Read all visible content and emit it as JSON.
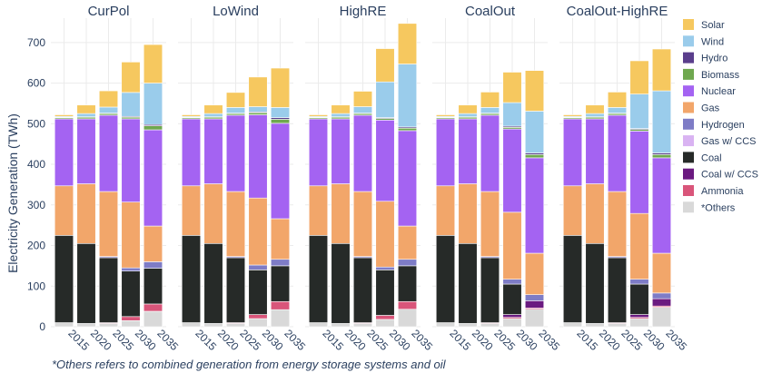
{
  "chart_data": {
    "type": "bar",
    "stacked": true,
    "ylabel": "Electricity Generation (TWh)",
    "ylim": [
      0,
      760
    ],
    "yticks": [
      0,
      100,
      200,
      300,
      400,
      500,
      600,
      700
    ],
    "grid": true,
    "legend_position": "right",
    "footnote": "*Others refers to combined generation from energy storage systems and oil",
    "categories": [
      "2015",
      "2020",
      "2025",
      "2030",
      "2035"
    ],
    "stack_order": [
      "*Others",
      "Ammonia",
      "Coal w/ CCS",
      "Coal",
      "Gas w/ CCS",
      "Hydrogen",
      "Gas",
      "Nuclear",
      "Biomass",
      "Hydro",
      "Wind",
      "Solar"
    ],
    "legend": [
      {
        "name": "Solar",
        "color": "#F6C85F"
      },
      {
        "name": "Wind",
        "color": "#9ACCEB"
      },
      {
        "name": "Hydro",
        "color": "#5A3E8C"
      },
      {
        "name": "Biomass",
        "color": "#6FA84F"
      },
      {
        "name": "Nuclear",
        "color": "#A463F2"
      },
      {
        "name": "Gas",
        "color": "#F2A66A"
      },
      {
        "name": "Hydrogen",
        "color": "#7E7CC6"
      },
      {
        "name": "Gas w/ CCS",
        "color": "#D9B3F2"
      },
      {
        "name": "Coal",
        "color": "#262A28"
      },
      {
        "name": "Coal w/ CCS",
        "color": "#6B1A80"
      },
      {
        "name": "Ammonia",
        "color": "#D9557A"
      },
      {
        "name": "*Others",
        "color": "#D9D9D9"
      }
    ],
    "panels": [
      {
        "title": "CurPol",
        "stacks": [
          {
            "*Others": 10,
            "Coal": 215,
            "Gas": 122,
            "Nuclear": 165,
            "Biomass": 3,
            "Hydro": 1,
            "Wind": 2,
            "Solar": 4
          },
          {
            "*Others": 8,
            "Coal": 197,
            "Gas": 147,
            "Nuclear": 160,
            "Biomass": 4,
            "Hydro": 1,
            "Wind": 8,
            "Solar": 21
          },
          {
            "*Others": 8,
            "Ammonia": 2,
            "Coal": 160,
            "Hydrogen": 3,
            "Gas": 160,
            "Nuclear": 188,
            "Biomass": 4,
            "Hydro": 1,
            "Wind": 15,
            "Solar": 40
          },
          {
            "*Others": 15,
            "Ammonia": 10,
            "Coal": 112,
            "Hydrogen": 8,
            "Gas": 162,
            "Nuclear": 205,
            "Biomass": 4,
            "Hydro": 2,
            "Wind": 59,
            "Solar": 75
          },
          {
            "*Others": 38,
            "Ammonia": 18,
            "Coal": 88,
            "Hydrogen": 16,
            "Gas": 88,
            "Nuclear": 237,
            "Biomass": 10,
            "Hydro": 3,
            "Wind": 102,
            "Solar": 95
          }
        ]
      },
      {
        "title": "LoWind",
        "stacks": [
          {
            "*Others": 10,
            "Coal": 215,
            "Gas": 122,
            "Nuclear": 165,
            "Biomass": 3,
            "Hydro": 1,
            "Wind": 2,
            "Solar": 4
          },
          {
            "*Others": 8,
            "Coal": 197,
            "Gas": 147,
            "Nuclear": 160,
            "Biomass": 4,
            "Hydro": 1,
            "Wind": 8,
            "Solar": 21
          },
          {
            "*Others": 8,
            "Ammonia": 2,
            "Coal": 160,
            "Hydrogen": 3,
            "Gas": 160,
            "Nuclear": 188,
            "Biomass": 4,
            "Hydro": 1,
            "Wind": 14,
            "Solar": 37
          },
          {
            "*Others": 20,
            "Ammonia": 10,
            "Coal": 110,
            "Hydrogen": 12,
            "Gas": 165,
            "Nuclear": 205,
            "Biomass": 5,
            "Hydro": 2,
            "Wind": 13,
            "Solar": 73
          },
          {
            "*Others": 42,
            "Ammonia": 20,
            "Coal": 88,
            "Hydrogen": 16,
            "Gas": 100,
            "Nuclear": 235,
            "Biomass": 10,
            "Hydro": 4,
            "Wind": 25,
            "Solar": 97
          }
        ]
      },
      {
        "title": "HighRE",
        "stacks": [
          {
            "*Others": 10,
            "Coal": 215,
            "Gas": 122,
            "Nuclear": 165,
            "Biomass": 3,
            "Hydro": 1,
            "Wind": 2,
            "Solar": 4
          },
          {
            "*Others": 8,
            "Coal": 197,
            "Gas": 147,
            "Nuclear": 160,
            "Biomass": 4,
            "Hydro": 1,
            "Wind": 8,
            "Solar": 21
          },
          {
            "*Others": 8,
            "Ammonia": 2,
            "Coal": 160,
            "Hydrogen": 3,
            "Gas": 160,
            "Nuclear": 188,
            "Biomass": 4,
            "Hydro": 1,
            "Wind": 16,
            "Solar": 38
          },
          {
            "*Others": 18,
            "Ammonia": 10,
            "Coal": 112,
            "Hydrogen": 7,
            "Gas": 162,
            "Nuclear": 200,
            "Biomass": 4,
            "Hydro": 2,
            "Wind": 88,
            "Solar": 82
          },
          {
            "*Others": 43,
            "Ammonia": 19,
            "Coal": 88,
            "Hydrogen": 16,
            "Gas": 82,
            "Nuclear": 235,
            "Biomass": 6,
            "Hydro": 3,
            "Wind": 155,
            "Solar": 100
          }
        ]
      },
      {
        "title": "CoalOut",
        "stacks": [
          {
            "*Others": 10,
            "Coal": 215,
            "Gas": 122,
            "Nuclear": 165,
            "Biomass": 3,
            "Hydro": 1,
            "Wind": 2,
            "Solar": 4
          },
          {
            "*Others": 8,
            "Coal": 197,
            "Gas": 147,
            "Nuclear": 160,
            "Biomass": 4,
            "Hydro": 1,
            "Wind": 8,
            "Solar": 21
          },
          {
            "*Others": 8,
            "Ammonia": 2,
            "Coal": 160,
            "Hydrogen": 3,
            "Gas": 160,
            "Nuclear": 188,
            "Biomass": 4,
            "Hydro": 1,
            "Wind": 14,
            "Solar": 38
          },
          {
            "*Others": 20,
            "Ammonia": 3,
            "Coal w/ CCS": 7,
            "Coal": 75,
            "Hydrogen": 12,
            "Gas": 165,
            "Nuclear": 205,
            "Biomass": 4,
            "Hydro": 3,
            "Wind": 58,
            "Solar": 75
          },
          {
            "*Others": 43,
            "Ammonia": 3,
            "Coal w/ CCS": 18,
            "Hydrogen": 15,
            "Gas": 102,
            "Nuclear": 235,
            "Biomass": 8,
            "Hydro": 4,
            "Wind": 103,
            "Solar": 100
          }
        ]
      },
      {
        "title": "CoalOut-HighRE",
        "stacks": [
          {
            "*Others": 10,
            "Coal": 215,
            "Gas": 122,
            "Nuclear": 165,
            "Biomass": 3,
            "Hydro": 1,
            "Wind": 2,
            "Solar": 4
          },
          {
            "*Others": 8,
            "Coal": 197,
            "Gas": 147,
            "Nuclear": 160,
            "Biomass": 4,
            "Hydro": 1,
            "Wind": 8,
            "Solar": 21
          },
          {
            "*Others": 8,
            "Ammonia": 2,
            "Coal": 160,
            "Hydrogen": 3,
            "Gas": 160,
            "Nuclear": 188,
            "Biomass": 4,
            "Hydro": 1,
            "Wind": 14,
            "Solar": 38
          },
          {
            "*Others": 20,
            "Ammonia": 3,
            "Coal w/ CCS": 7,
            "Coal": 75,
            "Hydrogen": 12,
            "Gas": 162,
            "Nuclear": 203,
            "Biomass": 4,
            "Hydro": 2,
            "Wind": 85,
            "Solar": 82
          },
          {
            "*Others": 48,
            "Ammonia": 3,
            "Coal w/ CCS": 18,
            "Hydrogen": 14,
            "Gas": 98,
            "Nuclear": 235,
            "Biomass": 8,
            "Hydro": 4,
            "Wind": 153,
            "Solar": 103
          }
        ]
      }
    ]
  }
}
